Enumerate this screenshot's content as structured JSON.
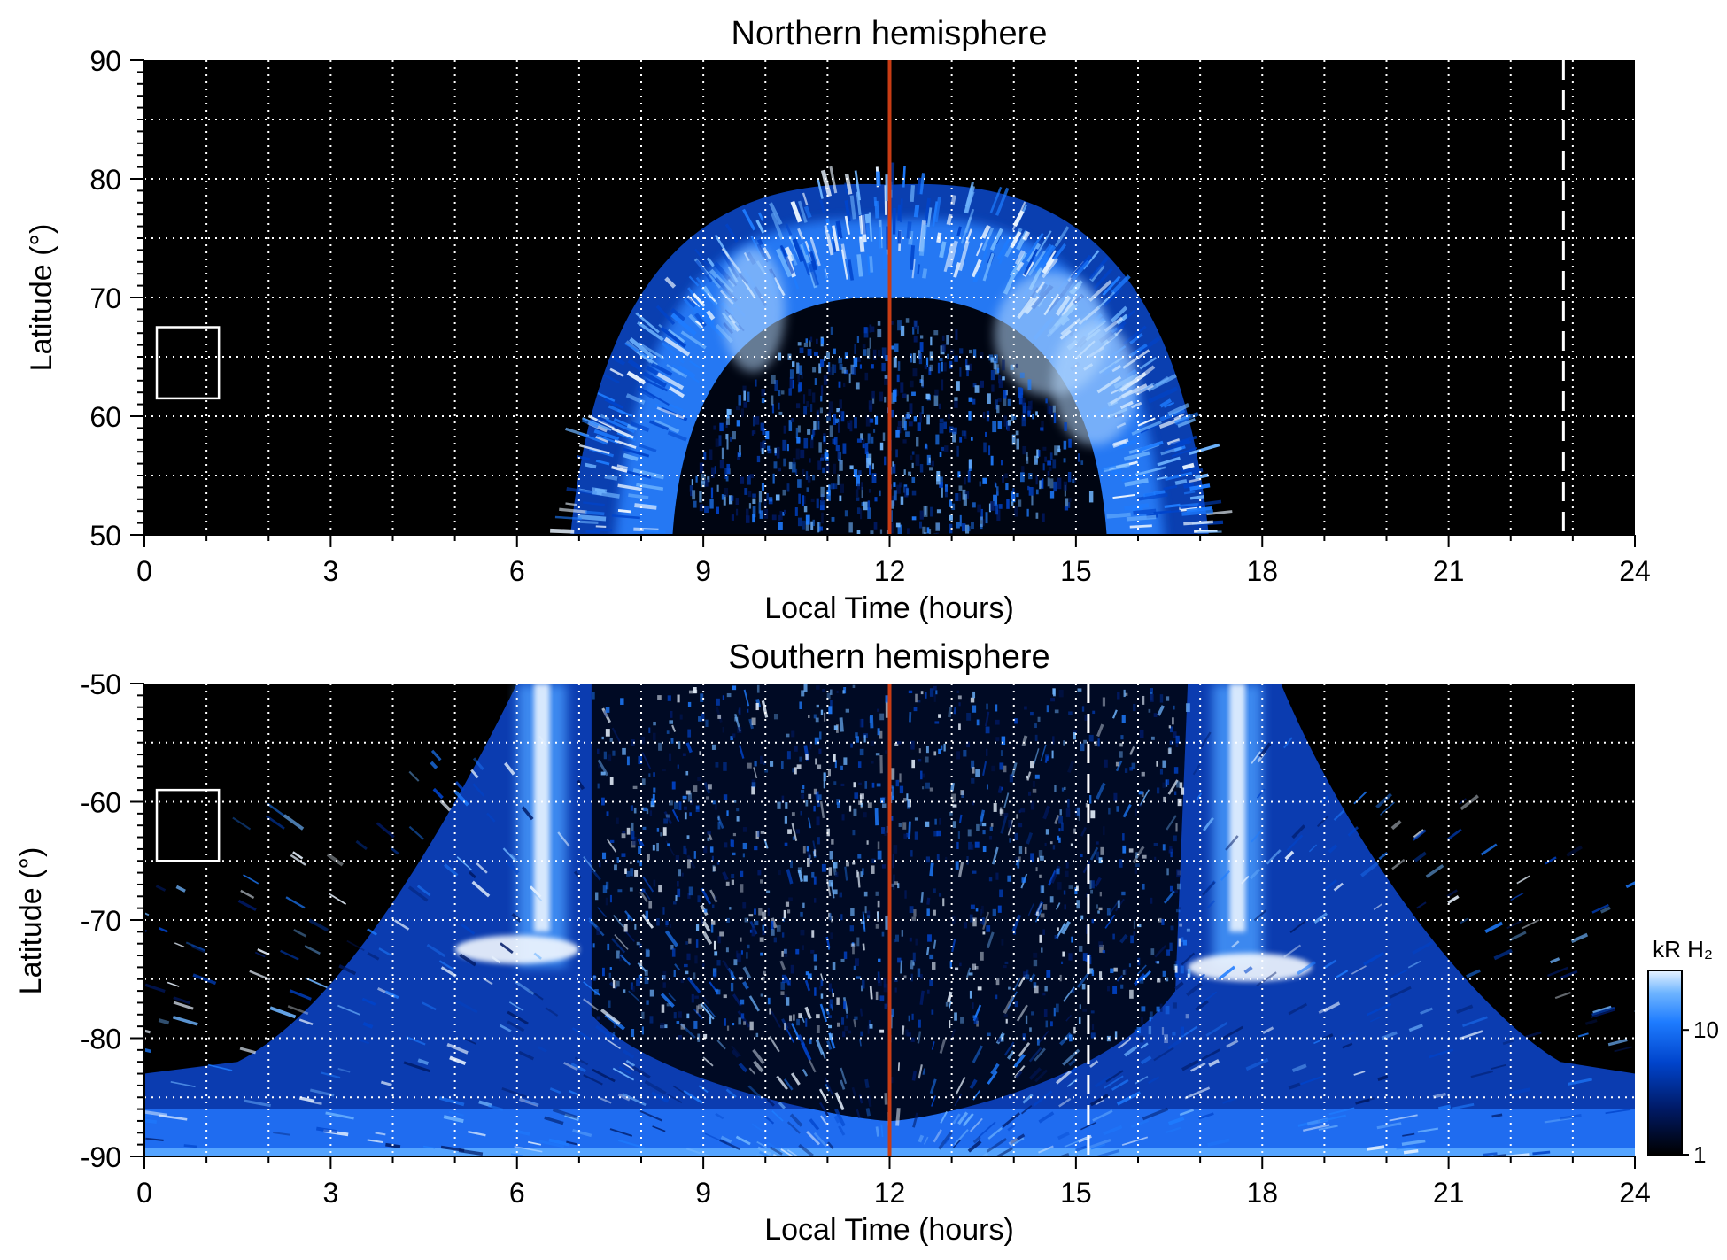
{
  "chart_data": [
    {
      "type": "heatmap",
      "title": "Northern hemisphere",
      "xlabel": "Local Time (hours)",
      "ylabel": "Latitude (°)",
      "xlim": [
        0,
        24
      ],
      "ylim": [
        50,
        90
      ],
      "xticks": [
        "0",
        "3",
        "6",
        "9",
        "12",
        "15",
        "18",
        "21",
        "24"
      ],
      "yticks": [
        "50",
        "60",
        "70",
        "80",
        "90"
      ],
      "grid": true,
      "background": "#000000",
      "colormap": [
        "#000000",
        "#001a66",
        "#0044cc",
        "#1e7cff",
        "#6fb5ff",
        "#e8f3ff"
      ],
      "noon_line": {
        "x": 12,
        "color": "#c83c14"
      },
      "dashed_line": {
        "x": 22.85,
        "lat_range": [
          50,
          90
        ]
      },
      "box": {
        "x_range": [
          0.2,
          1.2
        ],
        "lat_range": [
          61.5,
          67.5
        ]
      },
      "emission_oval": {
        "lt_range": [
          7.0,
          17.3
        ],
        "outer_peak_lat": 79.5,
        "inner_peak_lat": 70,
        "bright_segments": [
          "09:30-10:00",
          "14:00-16:00"
        ]
      }
    },
    {
      "type": "heatmap",
      "title": "Southern hemisphere",
      "xlabel": "Local Time (hours)",
      "ylabel": "Latitude (°)",
      "xlim": [
        0,
        24
      ],
      "ylim": [
        -90,
        -50
      ],
      "xticks": [
        "0",
        "3",
        "6",
        "9",
        "12",
        "15",
        "18",
        "21",
        "24"
      ],
      "yticks": [
        "-90",
        "-80",
        "-70",
        "-60",
        "-50"
      ],
      "grid": true,
      "background": "#000000",
      "noon_line": {
        "x": 12,
        "color": "#c83c14"
      },
      "dashed_line": {
        "x": 15.2,
        "lat_range": [
          -90,
          -50
        ]
      },
      "box": {
        "x_range": [
          0.2,
          1.2
        ],
        "lat_range": [
          -65,
          -59
        ]
      },
      "emission_oval": {
        "dawn_arc_lt": 6.4,
        "dusk_arc_lt": 17.6,
        "bright_spots": [
          {
            "lt": 6.0,
            "lat": -72.5
          },
          {
            "lt": 17.8,
            "lat": -74
          }
        ],
        "polar_cap_lat": -83
      },
      "colorbar": {
        "label": "kR H₂",
        "ticks": [
          "1",
          "10"
        ],
        "scale": "log",
        "range": [
          1,
          30
        ]
      }
    }
  ]
}
